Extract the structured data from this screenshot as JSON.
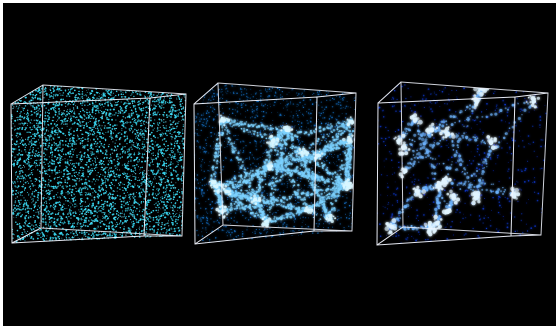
{
  "image": {
    "background": "#000000",
    "border": "#ffffff",
    "panels": [
      {
        "name": "cube-left",
        "point_color": "#39d8f2",
        "glow_color": "#7fe9ff",
        "density": "very-high"
      },
      {
        "name": "cube-middle",
        "point_color": "#1d8fff",
        "glow_color": "#7cd2ff",
        "density": "high"
      },
      {
        "name": "cube-right",
        "point_color": "#1243ff",
        "glow_color": "#6db4ff",
        "density": "medium"
      }
    ]
  }
}
